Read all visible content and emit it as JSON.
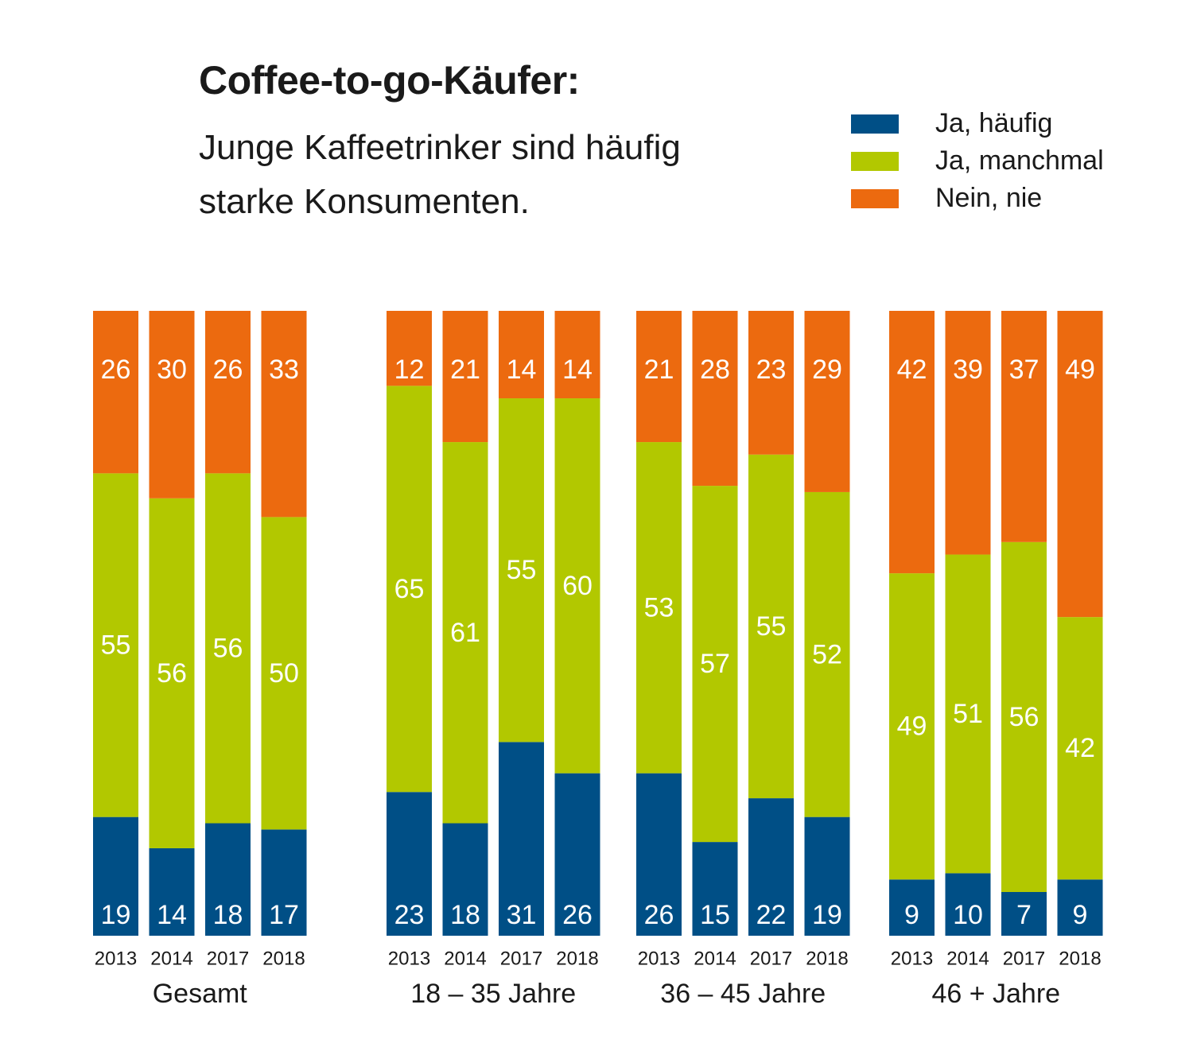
{
  "title": "Coffee-to-go-Käufer:",
  "subtitle": "Junge Kaffeetrinker sind häufig starke Konsumenten.",
  "colors": {
    "haeufig": "#004f86",
    "manchmal": "#b2c800",
    "nie": "#ec6a0f",
    "label": "#ffffff",
    "axis": "#1a1a1a"
  },
  "legend": [
    {
      "label": "Ja, häufig",
      "key": "haeufig"
    },
    {
      "label": "Ja, manchmal",
      "key": "manchmal"
    },
    {
      "label": "Nein, nie",
      "key": "nie"
    }
  ],
  "chart_data": {
    "type": "bar",
    "stacked": true,
    "normalized_percent": true,
    "title": "Coffee-to-go-Käufer:",
    "subtitle": "Junge Kaffeetrinker sind häufig starke Konsumenten.",
    "series_order": [
      "Ja, häufig",
      "Ja, manchmal",
      "Nein, nie"
    ],
    "groups": [
      {
        "name": "Gesamt",
        "categories": [
          "2013",
          "2014",
          "2017",
          "2018"
        ],
        "series": [
          {
            "name": "Ja, häufig",
            "values": [
              19,
              14,
              18,
              17
            ]
          },
          {
            "name": "Ja, manchmal",
            "values": [
              55,
              56,
              56,
              50
            ]
          },
          {
            "name": "Nein, nie",
            "values": [
              26,
              30,
              26,
              33
            ]
          }
        ]
      },
      {
        "name": "18 – 35 Jahre",
        "categories": [
          "2013",
          "2014",
          "2017",
          "2018"
        ],
        "series": [
          {
            "name": "Ja, häufig",
            "values": [
              23,
              18,
              31,
              26
            ]
          },
          {
            "name": "Ja, manchmal",
            "values": [
              65,
              61,
              55,
              60
            ]
          },
          {
            "name": "Nein, nie",
            "values": [
              12,
              21,
              14,
              14
            ]
          }
        ]
      },
      {
        "name": "36 – 45 Jahre",
        "categories": [
          "2013",
          "2014",
          "2017",
          "2018"
        ],
        "series": [
          {
            "name": "Ja, häufig",
            "values": [
              26,
              15,
              22,
              19
            ]
          },
          {
            "name": "Ja, manchmal",
            "values": [
              53,
              57,
              55,
              52
            ]
          },
          {
            "name": "Nein, nie",
            "values": [
              21,
              28,
              23,
              29
            ]
          }
        ]
      },
      {
        "name": "46 + Jahre",
        "categories": [
          "2013",
          "2014",
          "2017",
          "2018"
        ],
        "series": [
          {
            "name": "Ja, häufig",
            "values": [
              9,
              10,
              7,
              9
            ]
          },
          {
            "name": "Ja, manchmal",
            "values": [
              49,
              51,
              56,
              42
            ]
          },
          {
            "name": "Nein, nie",
            "values": [
              42,
              39,
              37,
              49
            ]
          }
        ]
      }
    ]
  }
}
